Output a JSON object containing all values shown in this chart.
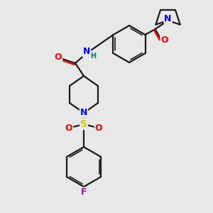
{
  "background_color": "#e8e8e8",
  "bond_color": "#1a1a1a",
  "atom_colors": {
    "N": "#0000ff",
    "O": "#ff0000",
    "S": "#cccc00",
    "F": "#cc00cc",
    "H": "#008080",
    "C": "#1a1a1a"
  },
  "figsize": [
    3.0,
    3.0
  ],
  "dpi": 100
}
